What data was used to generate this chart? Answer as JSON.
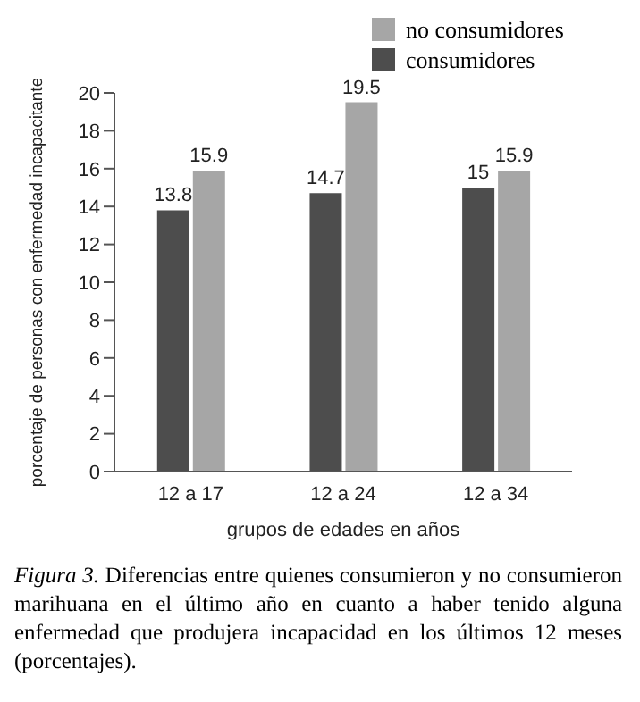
{
  "chart_data": {
    "type": "bar",
    "xlabel": "grupos de edades en años",
    "ylabel": "porcentaje de personas con enfermedad incapacitante",
    "categories": [
      "12 a 17",
      "12 a 24",
      "12 a 34"
    ],
    "series": [
      {
        "name": "consumidores",
        "color": "#4d4d4d",
        "values": [
          13.8,
          14.7,
          15
        ]
      },
      {
        "name": "no consumidores",
        "color": "#a6a6a6",
        "values": [
          15.9,
          19.5,
          15.9
        ]
      }
    ],
    "ylim": [
      0,
      20
    ],
    "yticks": [
      0,
      2,
      4,
      6,
      8,
      10,
      12,
      14,
      16,
      18,
      20
    ],
    "grid": false,
    "legend": "top right",
    "data_labels": true,
    "annotations": [
      "Figura 3.",
      "Diferencias entre quienes consumieron y no consumieron marihuana en el último año en cuanto a haber tenido alguna enfermedad que produjera incapacidad en los últimos 12 meses (porcentajes)."
    ]
  }
}
